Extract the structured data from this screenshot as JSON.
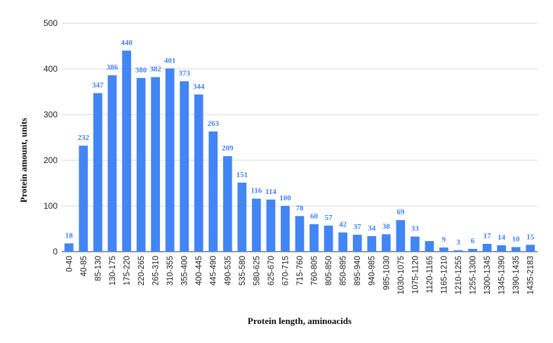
{
  "chart_data": {
    "type": "bar",
    "title": "",
    "xlabel": "Protein length, aminoacids",
    "ylabel": "Protein amount, units",
    "ylim": [
      0,
      500
    ],
    "yticks": [
      0,
      100,
      200,
      300,
      400,
      500
    ],
    "grid": true,
    "legend": "none",
    "bar_color": "#4285f4",
    "label_color": "#4285f4",
    "categories": [
      "0-40",
      "40-85",
      "85-130",
      "130-175",
      "175-220",
      "220-265",
      "265-310",
      "310-355",
      "355-400",
      "400-445",
      "445-490",
      "490-535",
      "535-580",
      "580-625",
      "625-670",
      "670-715",
      "715-760",
      "760-805",
      "805-850",
      "850-895",
      "895-940",
      "940-985",
      "985-1030",
      "1030-1075",
      "1075-1120",
      "1120-1165",
      "1165-1210",
      "1210-1255",
      "1255-1300",
      "1300-1345",
      "1345-1390",
      "1390-1435",
      "1435-2183"
    ],
    "values": [
      18,
      232,
      347,
      386,
      440,
      380,
      382,
      401,
      373,
      344,
      263,
      209,
      151,
      116,
      114,
      100,
      78,
      60,
      57,
      42,
      37,
      34,
      38,
      69,
      33,
      23,
      9,
      3,
      6,
      17,
      14,
      10,
      15
    ],
    "data_labels": [
      "18",
      "232",
      "347",
      "386",
      "440",
      "380",
      "382",
      "401",
      "373",
      "344",
      "263",
      "209",
      "151",
      "116",
      "114",
      "100",
      "78",
      "60",
      "57",
      "42",
      "37",
      "34",
      "38",
      "69",
      "33",
      "",
      "9",
      "3",
      "6",
      "17",
      "14",
      "10",
      "15"
    ]
  }
}
